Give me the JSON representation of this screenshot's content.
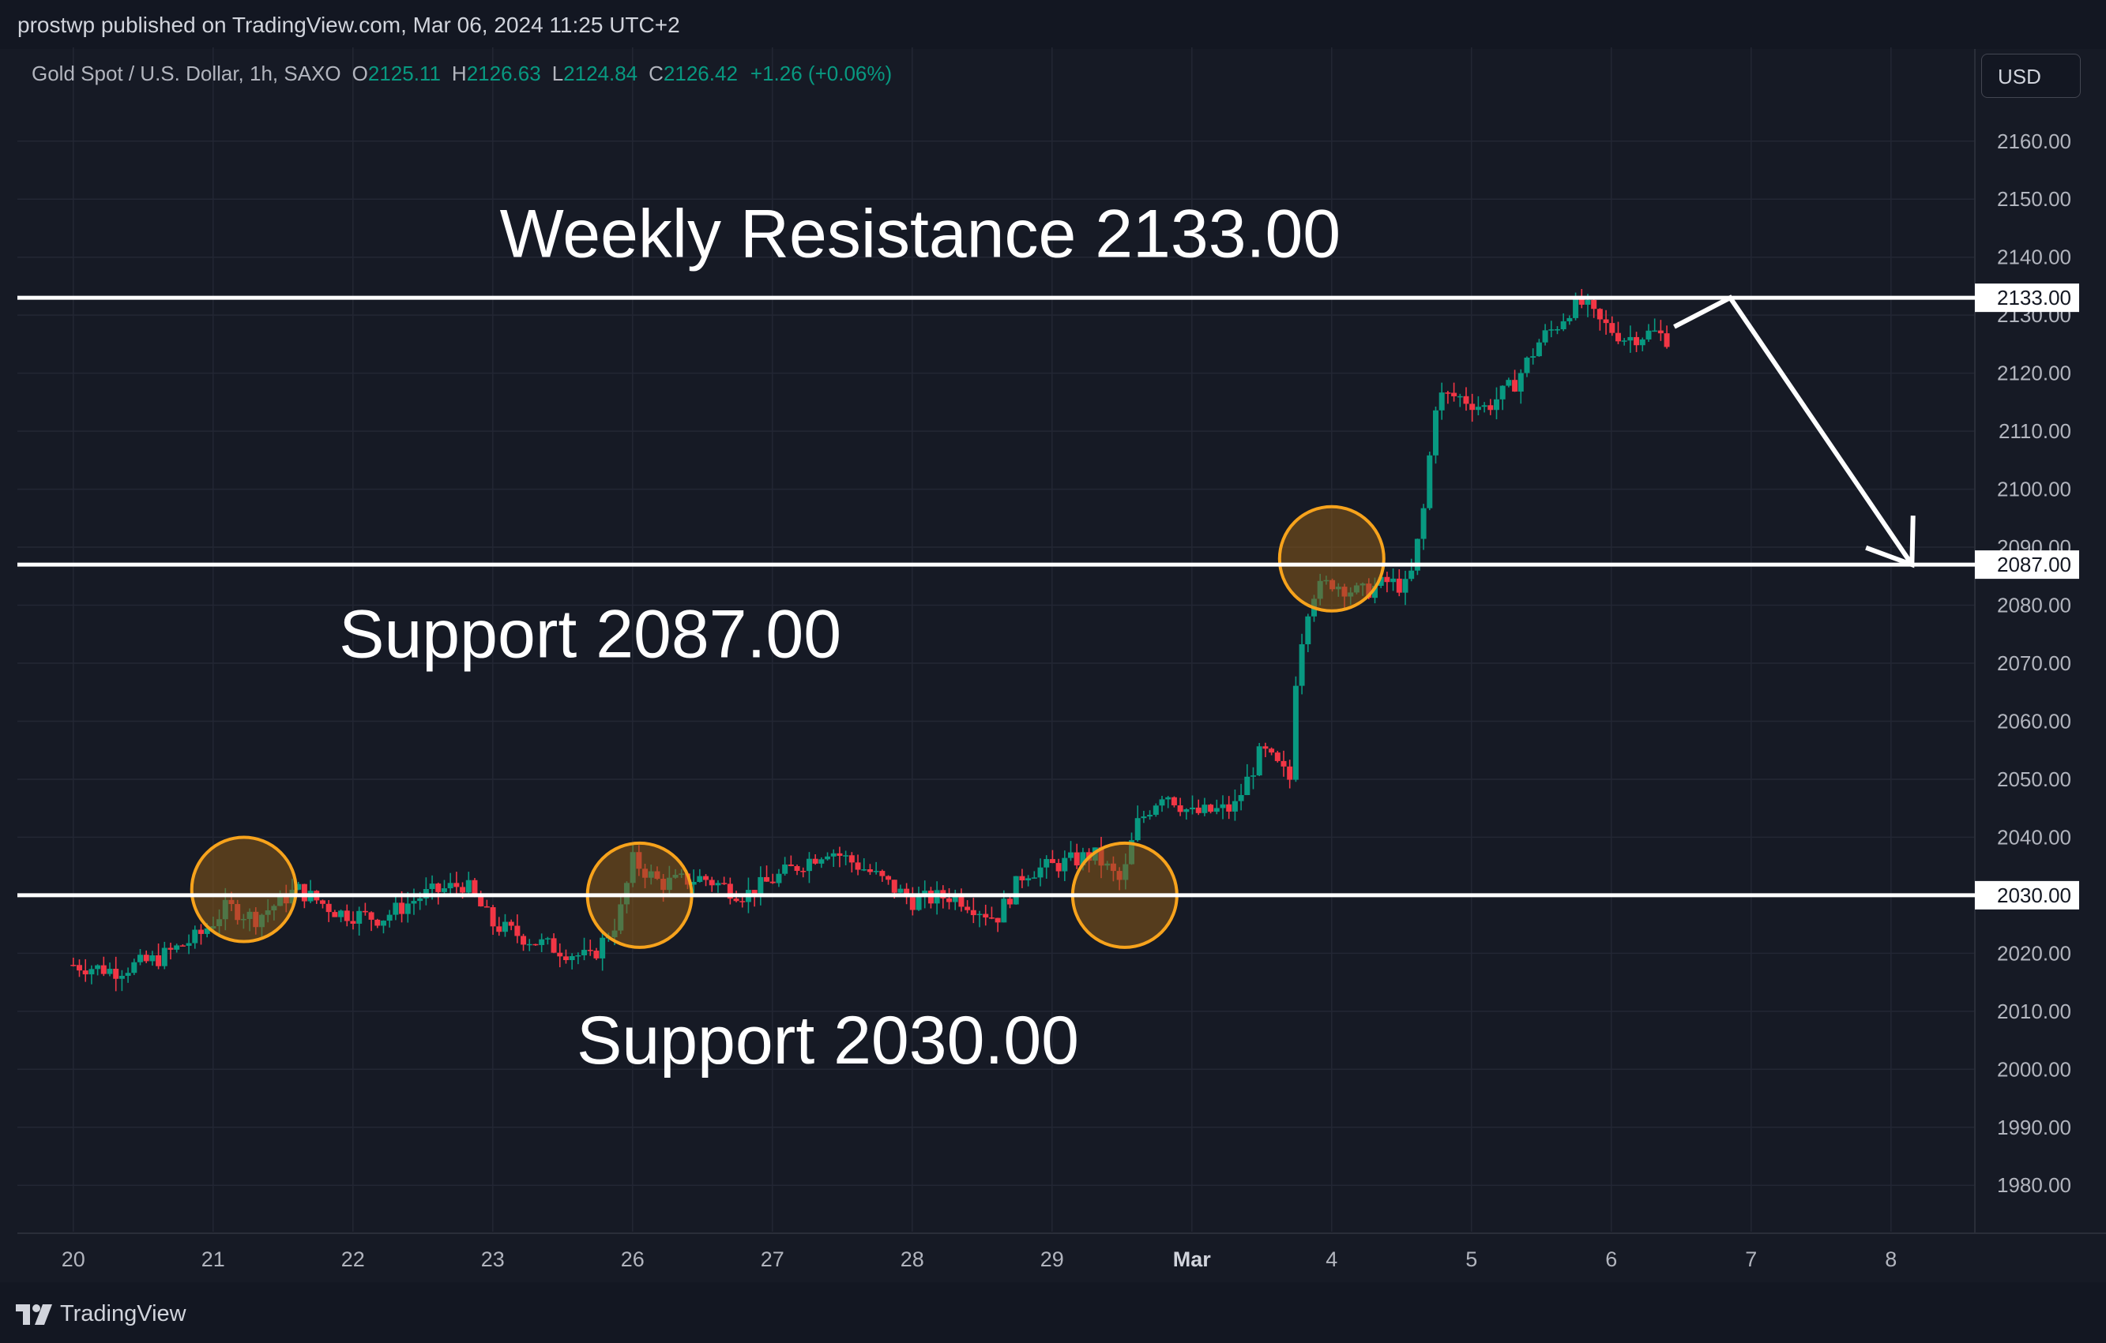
{
  "header": {
    "published_text": "prostwp published on TradingView.com, Mar 06, 2024 11:25 UTC+2"
  },
  "legend": {
    "symbol": "Gold Spot / U.S. Dollar, 1h, SAXO",
    "open_label": "O",
    "open_value": "2125.11",
    "high_label": "H",
    "high_value": "2126.63",
    "low_label": "L",
    "low_value": "2124.84",
    "close_label": "C",
    "close_value": "2126.42",
    "change": "+1.26 (+0.06%)"
  },
  "currency_button": "USD",
  "footer": {
    "brand": "TradingView"
  },
  "colors": {
    "background": "#161a25",
    "grid": "#232734",
    "bull": "#089981",
    "bear": "#f23645",
    "level_line": "#ffffff",
    "circle_stroke": "#f7a31c",
    "circle_fill": "#8a5a17"
  },
  "chart_data": {
    "type": "candlestick",
    "title": "Gold Spot / U.S. Dollar, 1h, SAXO",
    "ylim": [
      1972,
      2168
    ],
    "y_ticks": [
      1980,
      1990,
      2000,
      2010,
      2020,
      2030,
      2040,
      2050,
      2060,
      2070,
      2080,
      2090,
      2100,
      2110,
      2120,
      2130,
      2140,
      2150,
      2160
    ],
    "y_tick_labels": [
      "1980.00",
      "1990.00",
      "2000.00",
      "2010.00",
      "2020.00",
      "2030.00",
      "2040.00",
      "2050.00",
      "2060.00",
      "2070.00",
      "2080.00",
      "2090.00",
      "2100.00",
      "2110.00",
      "2120.00",
      "2130.00",
      "2140.00",
      "2150.00",
      "2160.00"
    ],
    "x_day_labels": [
      "20",
      "21",
      "22",
      "23",
      "26",
      "27",
      "28",
      "29",
      "Mar",
      "4",
      "5",
      "6",
      "7",
      "8"
    ],
    "x_day_index": [
      0,
      1,
      2,
      3,
      4,
      5,
      6,
      7,
      8,
      9,
      10,
      11,
      12,
      13
    ],
    "x_range": [
      -0.4,
      13.6
    ],
    "price_path": [
      [
        0.0,
        2018
      ],
      [
        0.3,
        2017
      ],
      [
        0.6,
        2019
      ],
      [
        0.9,
        2023
      ],
      [
        1.1,
        2028
      ],
      [
        1.3,
        2026
      ],
      [
        1.6,
        2031
      ],
      [
        1.9,
        2027
      ],
      [
        2.2,
        2026
      ],
      [
        2.5,
        2030
      ],
      [
        2.8,
        2032
      ],
      [
        3.0,
        2025
      ],
      [
        3.3,
        2022
      ],
      [
        3.7,
        2019
      ],
      [
        3.9,
        2026
      ],
      [
        4.0,
        2036
      ],
      [
        4.2,
        2032
      ],
      [
        4.5,
        2033
      ],
      [
        4.8,
        2030
      ],
      [
        5.1,
        2034
      ],
      [
        5.4,
        2038
      ],
      [
        5.7,
        2034
      ],
      [
        6.0,
        2029
      ],
      [
        6.3,
        2030
      ],
      [
        6.6,
        2026
      ],
      [
        6.8,
        2034
      ],
      [
        7.0,
        2035
      ],
      [
        7.3,
        2037
      ],
      [
        7.5,
        2032
      ],
      [
        7.6,
        2042
      ],
      [
        7.8,
        2048
      ],
      [
        8.0,
        2044
      ],
      [
        8.3,
        2045
      ],
      [
        8.5,
        2055
      ],
      [
        8.7,
        2050
      ],
      [
        8.75,
        2070
      ],
      [
        8.85,
        2082
      ],
      [
        9.0,
        2084
      ],
      [
        9.2,
        2082
      ],
      [
        9.4,
        2084
      ],
      [
        9.55,
        2083
      ],
      [
        9.65,
        2095
      ],
      [
        9.75,
        2116
      ],
      [
        9.9,
        2116
      ],
      [
        10.1,
        2114
      ],
      [
        10.3,
        2118
      ],
      [
        10.5,
        2126
      ],
      [
        10.6,
        2128
      ],
      [
        10.7,
        2131
      ],
      [
        10.8,
        2132
      ],
      [
        10.9,
        2129
      ],
      [
        11.1,
        2126
      ],
      [
        11.3,
        2127
      ],
      [
        11.4,
        2126
      ]
    ],
    "levels": [
      {
        "value": 2133.0,
        "label": "2133.00"
      },
      {
        "value": 2087.0,
        "label": "2087.00"
      },
      {
        "value": 2030.0,
        "label": "2030.00"
      }
    ],
    "annotations": [
      {
        "text": "Weekly Resistance 2133.00",
        "x": 3.05,
        "y": 2140
      },
      {
        "text": "Support 2087.00",
        "x": 1.9,
        "y": 2071
      },
      {
        "text": "Support 2030.00",
        "x": 3.6,
        "y": 2001
      }
    ],
    "highlight_circles": [
      {
        "x": 1.22,
        "y": 2031
      },
      {
        "x": 4.05,
        "y": 2030
      },
      {
        "x": 7.52,
        "y": 2030
      },
      {
        "x": 9.0,
        "y": 2088
      }
    ],
    "projection_arrow": [
      [
        11.45,
        2128
      ],
      [
        11.85,
        2133
      ],
      [
        13.15,
        2087
      ]
    ]
  }
}
